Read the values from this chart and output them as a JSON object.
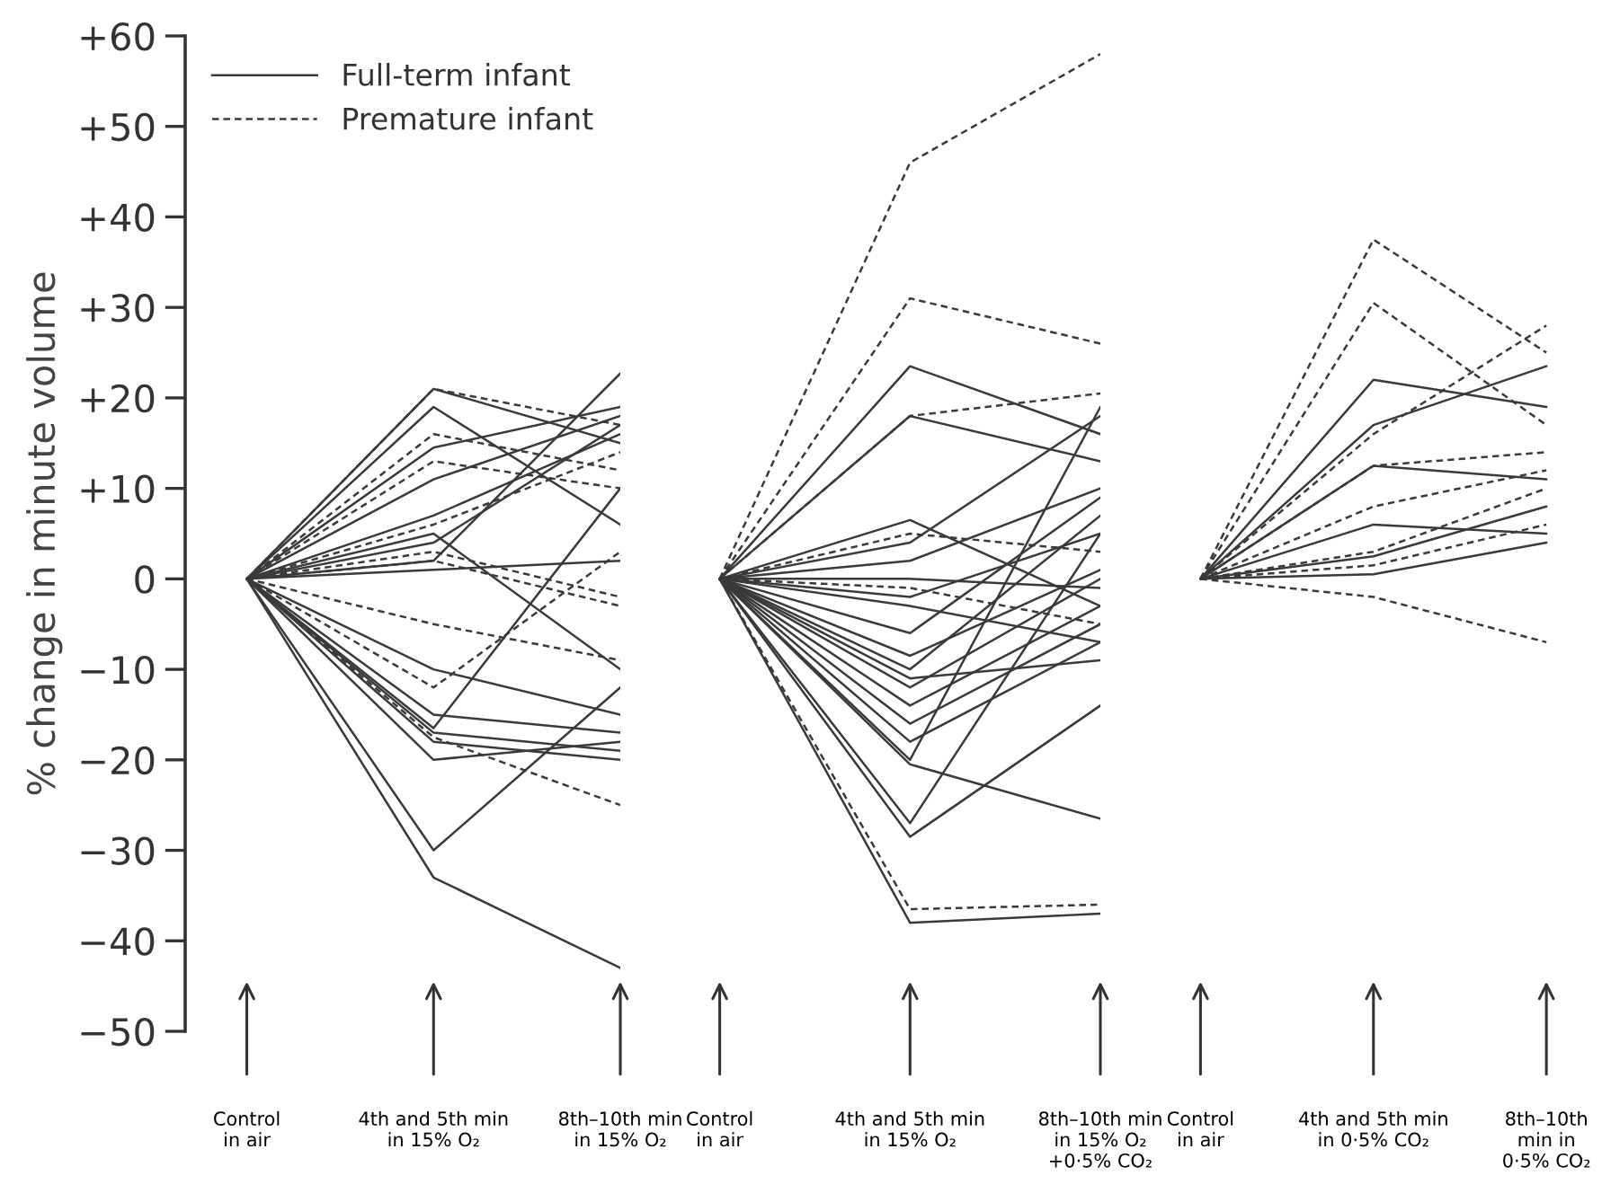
{
  "chart_data": [
    {
      "type": "line",
      "ylabel": "% change in minute volume",
      "legend": "top left",
      "categories": [
        "Control\nin air",
        "4th and 5th min\nin 15% O₂",
        "8th–10th min\nin 15% O₂"
      ],
      "ylim": [
        -50,
        60
      ],
      "yticks": [
        {
          "value": -50,
          "label": "−50"
        },
        {
          "value": -40,
          "label": "−40"
        },
        {
          "value": -30,
          "label": "−30"
        },
        {
          "value": -20,
          "label": "−20"
        },
        {
          "value": -10,
          "label": "−10"
        },
        0,
        {
          "value": 10,
          "label": "+10"
        },
        {
          "value": 20,
          "label": "+20"
        },
        {
          "value": 30,
          "label": "+30"
        },
        {
          "value": 40,
          "label": "+40"
        },
        {
          "value": 50,
          "label": "+50"
        },
        {
          "value": 60,
          "label": "+60"
        }
      ],
      "series": [
        {
          "name": "Full-term infant",
          "line_style": "solid",
          "color": "#3a3a3a",
          "values": [
            0,
            21,
            15
          ]
        },
        {
          "name": "Premature infant",
          "line_style": "dashed",
          "color": "#3a3a3a",
          "values": [
            0,
            21,
            17
          ]
        },
        {
          "line_style": "solid",
          "color": "#3a3a3a",
          "values": [
            0,
            19,
            6
          ]
        },
        {
          "line_style": "dashed",
          "color": "#3a3a3a",
          "values": [
            0,
            16,
            12
          ]
        },
        {
          "line_style": "solid",
          "color": "#3a3a3a",
          "values": [
            0,
            14.5,
            19
          ]
        },
        {
          "line_style": "dashed",
          "color": "#3a3a3a",
          "values": [
            0,
            13,
            10
          ]
        },
        {
          "line_style": "solid",
          "color": "#3a3a3a",
          "values": [
            0,
            11,
            18
          ]
        },
        {
          "line_style": "solid",
          "color": "#3a3a3a",
          "values": [
            0,
            7,
            16
          ]
        },
        {
          "line_style": "dashed",
          "color": "#3a3a3a",
          "values": [
            0,
            6,
            14
          ]
        },
        {
          "line_style": "solid",
          "color": "#3a3a3a",
          "values": [
            0,
            5,
            -10
          ]
        },
        {
          "line_style": "solid",
          "color": "#3a3a3a",
          "values": [
            0,
            4,
            17
          ]
        },
        {
          "line_style": "dashed",
          "color": "#3a3a3a",
          "values": [
            0,
            3,
            -2
          ]
        },
        {
          "line_style": "solid",
          "color": "#3a3a3a",
          "values": [
            0,
            2,
            22.7
          ]
        },
        {
          "line_style": "solid",
          "color": "#3a3a3a",
          "values": [
            0,
            1,
            2
          ]
        },
        {
          "line_style": "dashed",
          "color": "#3a3a3a",
          "values": [
            0,
            2,
            -3
          ]
        },
        {
          "line_style": "dashed",
          "color": "#3a3a3a",
          "values": [
            0,
            -5,
            -9
          ]
        },
        {
          "line_style": "solid",
          "color": "#3a3a3a",
          "values": [
            0,
            -10,
            -15
          ]
        },
        {
          "line_style": "dashed",
          "color": "#3a3a3a",
          "values": [
            0,
            -12,
            3
          ]
        },
        {
          "line_style": "solid",
          "color": "#3a3a3a",
          "values": [
            0,
            -15,
            -17
          ]
        },
        {
          "line_style": "solid",
          "color": "#3a3a3a",
          "values": [
            0,
            -16.5,
            10
          ]
        },
        {
          "line_style": "solid",
          "color": "#3a3a3a",
          "values": [
            0,
            -17,
            -19
          ]
        },
        {
          "line_style": "dashed",
          "color": "#3a3a3a",
          "values": [
            0,
            -17.5,
            -25
          ]
        },
        {
          "line_style": "solid",
          "color": "#3a3a3a",
          "values": [
            0,
            -18,
            -20
          ]
        },
        {
          "line_style": "solid",
          "color": "#3a3a3a",
          "values": [
            0,
            -20,
            -18
          ]
        },
        {
          "line_style": "solid",
          "color": "#3a3a3a",
          "values": [
            0,
            -30,
            -12
          ]
        },
        {
          "line_style": "solid",
          "color": "#3a3a3a",
          "values": [
            0,
            -33,
            -43
          ]
        }
      ]
    },
    {
      "type": "line",
      "tick_labels": "x",
      "categories": [
        "Control\nin air",
        "4th and 5th min\nin 15% O₂",
        "8th–10th min\nin 15% O₂\n+0·5% CO₂"
      ],
      "ylim": [
        -50,
        60
      ],
      "series": [
        {
          "line_style": "dashed",
          "color": "#3a3a3a",
          "values": [
            0,
            46,
            58
          ]
        },
        {
          "line_style": "dashed",
          "color": "#3a3a3a",
          "values": [
            0,
            31,
            26
          ]
        },
        {
          "line_style": "solid",
          "color": "#3a3a3a",
          "values": [
            0,
            23.5,
            16
          ]
        },
        {
          "line_style": "dashed",
          "color": "#3a3a3a",
          "values": [
            0,
            18,
            20.5
          ]
        },
        {
          "line_style": "solid",
          "color": "#3a3a3a",
          "values": [
            0,
            18,
            13
          ]
        },
        {
          "line_style": "solid",
          "color": "#3a3a3a",
          "values": [
            0,
            6.5,
            -3
          ]
        },
        {
          "line_style": "dashed",
          "color": "#3a3a3a",
          "values": [
            0,
            5,
            3
          ]
        },
        {
          "line_style": "solid",
          "color": "#3a3a3a",
          "values": [
            0,
            4,
            18
          ]
        },
        {
          "line_style": "solid",
          "color": "#3a3a3a",
          "values": [
            0,
            2,
            10
          ]
        },
        {
          "line_style": "solid",
          "color": "#3a3a3a",
          "values": [
            0,
            0,
            -1
          ]
        },
        {
          "line_style": "dashed",
          "color": "#3a3a3a",
          "values": [
            0,
            -1,
            -5
          ]
        },
        {
          "line_style": "solid",
          "color": "#3a3a3a",
          "values": [
            0,
            -2,
            5
          ]
        },
        {
          "line_style": "solid",
          "color": "#3a3a3a",
          "values": [
            0,
            -3,
            -7
          ]
        },
        {
          "line_style": "solid",
          "color": "#3a3a3a",
          "values": [
            0,
            -6,
            9
          ]
        },
        {
          "line_style": "solid",
          "color": "#3a3a3a",
          "values": [
            0,
            -8.5,
            1
          ]
        },
        {
          "line_style": "solid",
          "color": "#3a3a3a",
          "values": [
            0,
            -10,
            7
          ]
        },
        {
          "line_style": "solid",
          "color": "#3a3a3a",
          "values": [
            0,
            -11,
            -9
          ]
        },
        {
          "line_style": "solid",
          "color": "#3a3a3a",
          "values": [
            0,
            -12,
            0
          ]
        },
        {
          "line_style": "solid",
          "color": "#3a3a3a",
          "values": [
            0,
            -14,
            -3
          ]
        },
        {
          "line_style": "solid",
          "color": "#3a3a3a",
          "values": [
            0,
            -16,
            -5
          ]
        },
        {
          "line_style": "solid",
          "color": "#3a3a3a",
          "values": [
            0,
            -18,
            -7
          ]
        },
        {
          "line_style": "solid",
          "color": "#3a3a3a",
          "values": [
            0,
            -20,
            19
          ]
        },
        {
          "line_style": "solid",
          "color": "#3a3a3a",
          "values": [
            0,
            -20.5,
            -26.5
          ]
        },
        {
          "line_style": "solid",
          "color": "#3a3a3a",
          "values": [
            0,
            -27,
            5
          ]
        },
        {
          "line_style": "solid",
          "color": "#3a3a3a",
          "values": [
            0,
            -28.5,
            -14
          ]
        },
        {
          "line_style": "dashed",
          "color": "#3a3a3a",
          "values": [
            0,
            -36.5,
            -36
          ]
        },
        {
          "line_style": "solid",
          "color": "#3a3a3a",
          "values": [
            0,
            -38,
            -37
          ]
        }
      ]
    },
    {
      "type": "line",
      "tick_labels": "x",
      "categories": [
        "Control\nin air",
        "4th and 5th min\nin 0·5% CO₂",
        "8th–10th\nmin in\n0·5% CO₂"
      ],
      "ylim": [
        -50,
        60
      ],
      "series": [
        {
          "line_style": "dashed",
          "color": "#3a3a3a",
          "values": [
            0,
            37.5,
            25
          ]
        },
        {
          "line_style": "dashed",
          "color": "#3a3a3a",
          "values": [
            0,
            30.5,
            17
          ]
        },
        {
          "line_style": "solid",
          "color": "#3a3a3a",
          "values": [
            0,
            22,
            19
          ]
        },
        {
          "line_style": "solid",
          "color": "#3a3a3a",
          "values": [
            0,
            17,
            23.5
          ]
        },
        {
          "line_style": "dashed",
          "color": "#3a3a3a",
          "values": [
            0,
            16,
            28
          ]
        },
        {
          "line_style": "solid",
          "color": "#3a3a3a",
          "values": [
            0,
            12.5,
            11
          ]
        },
        {
          "line_style": "dashed",
          "color": "#3a3a3a",
          "values": [
            0,
            12.5,
            14
          ]
        },
        {
          "line_style": "dashed",
          "color": "#3a3a3a",
          "values": [
            0,
            8,
            12
          ]
        },
        {
          "line_style": "solid",
          "color": "#3a3a3a",
          "values": [
            0,
            6,
            5
          ]
        },
        {
          "line_style": "dashed",
          "color": "#3a3a3a",
          "values": [
            0,
            3,
            10
          ]
        },
        {
          "line_style": "solid",
          "color": "#3a3a3a",
          "values": [
            0,
            2.5,
            8
          ]
        },
        {
          "line_style": "dashed",
          "color": "#3a3a3a",
          "values": [
            0,
            1.5,
            6
          ]
        },
        {
          "line_style": "solid",
          "color": "#3a3a3a",
          "values": [
            0,
            0.5,
            4
          ]
        },
        {
          "line_style": "dashed",
          "color": "#3a3a3a",
          "values": [
            0,
            -2,
            -7
          ]
        }
      ]
    }
  ]
}
